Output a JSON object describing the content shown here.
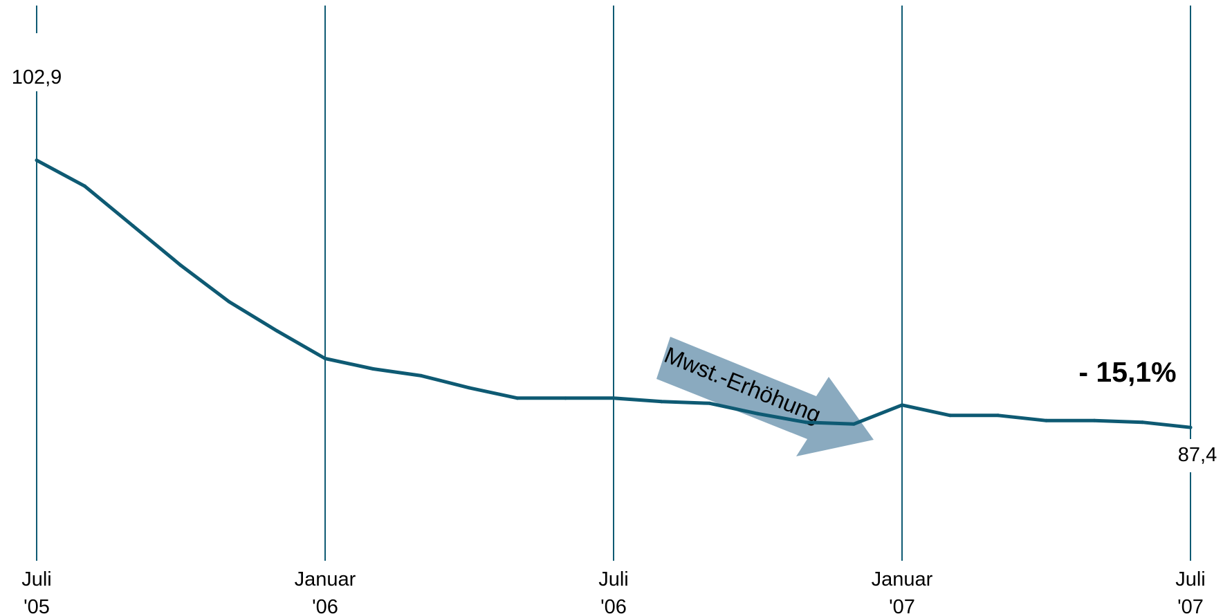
{
  "chart_data": {
    "type": "line",
    "title": "",
    "xlabel": "",
    "ylabel": "",
    "x_ticks": [
      {
        "line1": "Juli",
        "line2": "'05",
        "index": 0
      },
      {
        "line1": "Januar",
        "line2": "'06",
        "index": 6
      },
      {
        "line1": "Juli",
        "line2": "'06",
        "index": 12
      },
      {
        "line1": "Januar",
        "line2": "'07",
        "index": 18
      },
      {
        "line1": "Juli",
        "line2": "'07",
        "index": 24
      }
    ],
    "series": [
      {
        "values": [
          102.9,
          101.4,
          99.1,
          96.8,
          94.7,
          93.0,
          91.4,
          90.8,
          90.4,
          89.7,
          89.1,
          89.1,
          89.1,
          88.9,
          88.8,
          88.2,
          87.7,
          87.6,
          88.7,
          88.1,
          88.1,
          87.8,
          87.8,
          87.7,
          87.4
        ]
      }
    ],
    "ylim": [
      84.0,
      106.5
    ],
    "grid": "vertical lines at tick labels",
    "data_labels": {
      "first": "102,9",
      "last": "87,4"
    },
    "annotations": {
      "arrow_label": "Mwst.-Erhöhung",
      "change": "- 15,1%"
    },
    "colors": {
      "line": "#0e5a73",
      "grid": "#0e5a73",
      "arrow": "#8aaabf",
      "text": "#000000"
    }
  }
}
